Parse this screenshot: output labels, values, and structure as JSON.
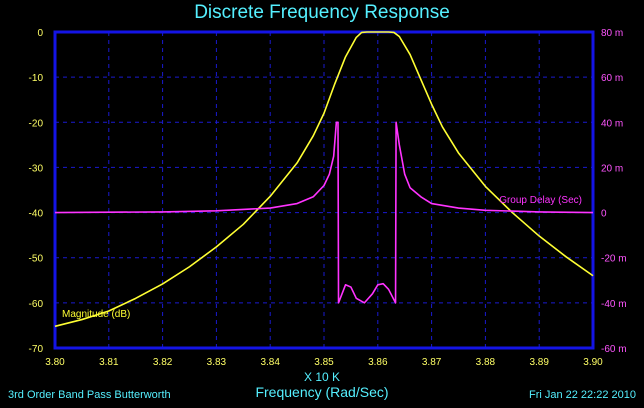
{
  "chart_data": {
    "type": "line",
    "title": "Discrete Frequency Response",
    "xlabel": "Frequency (Rad/Sec)",
    "x_multiplier": "X 10 K",
    "xlim": [
      3.8,
      3.9
    ],
    "x_ticks": [
      "3.80",
      "3.81",
      "3.82",
      "3.83",
      "3.84",
      "3.85",
      "3.86",
      "3.87",
      "3.88",
      "3.89",
      "3.90"
    ],
    "ylim_left": [
      -70,
      0
    ],
    "y_ticks_left": [
      "0",
      "-10",
      "-20",
      "-30",
      "-40",
      "-50",
      "-60",
      "-70"
    ],
    "ylim_right": [
      -60,
      80
    ],
    "y_ticks_right": [
      "80 m",
      "60 m",
      "40 m",
      "20 m",
      "0",
      "-20 m",
      "-40 m",
      "-60 m"
    ],
    "grid": true,
    "series": [
      {
        "name": "Magnitude (dB)",
        "axis": "left",
        "color": "#ffff33",
        "points": [
          [
            3.8,
            -65.2
          ],
          [
            3.805,
            -63.7
          ],
          [
            3.81,
            -61.8
          ],
          [
            3.815,
            -59.0
          ],
          [
            3.82,
            -55.8
          ],
          [
            3.825,
            -52.0
          ],
          [
            3.83,
            -47.6
          ],
          [
            3.835,
            -42.6
          ],
          [
            3.84,
            -36.4
          ],
          [
            3.845,
            -29.0
          ],
          [
            3.848,
            -23.0
          ],
          [
            3.85,
            -18.0
          ],
          [
            3.852,
            -11.5
          ],
          [
            3.854,
            -5.5
          ],
          [
            3.856,
            -1.2
          ],
          [
            3.857,
            -0.1
          ],
          [
            3.858,
            0.0
          ],
          [
            3.862,
            0.0
          ],
          [
            3.863,
            -0.1
          ],
          [
            3.864,
            -1.0
          ],
          [
            3.866,
            -5.0
          ],
          [
            3.868,
            -10.5
          ],
          [
            3.87,
            -16.0
          ],
          [
            3.872,
            -21.0
          ],
          [
            3.875,
            -26.8
          ],
          [
            3.88,
            -34.2
          ],
          [
            3.885,
            -40.0
          ],
          [
            3.89,
            -45.2
          ],
          [
            3.895,
            -49.8
          ],
          [
            3.9,
            -54.0
          ]
        ]
      },
      {
        "name": "Group Delay (Sec)",
        "axis": "right",
        "color": "#ff33ff",
        "points": [
          [
            3.8,
            0.0
          ],
          [
            3.82,
            0.3
          ],
          [
            3.83,
            0.8
          ],
          [
            3.84,
            2.0
          ],
          [
            3.845,
            4.0
          ],
          [
            3.848,
            7.0
          ],
          [
            3.85,
            12.0
          ],
          [
            3.851,
            17.0
          ],
          [
            3.8518,
            25.0
          ],
          [
            3.8523,
            40.0
          ],
          [
            3.8526,
            40.0
          ],
          [
            3.8527,
            -40.0
          ],
          [
            3.854,
            -32.0
          ],
          [
            3.855,
            -33.0
          ],
          [
            3.856,
            -38.0
          ],
          [
            3.8575,
            -40.0
          ],
          [
            3.859,
            -36.0
          ],
          [
            3.86,
            -32.0
          ],
          [
            3.861,
            -31.5
          ],
          [
            3.862,
            -34.0
          ],
          [
            3.8633,
            -40.0
          ],
          [
            3.8634,
            40.0
          ],
          [
            3.864,
            30.0
          ],
          [
            3.865,
            17.0
          ],
          [
            3.866,
            11.0
          ],
          [
            3.868,
            7.0
          ],
          [
            3.87,
            4.0
          ],
          [
            3.875,
            2.0
          ],
          [
            3.88,
            1.0
          ],
          [
            3.89,
            0.3
          ],
          [
            3.9,
            0.0
          ]
        ]
      }
    ]
  },
  "footer": {
    "left": "3rd Order Band Pass Butterworth",
    "right": "Fri Jan 22 22:22 2010"
  },
  "colors": {
    "background": "#000000",
    "frame": "#1414e6",
    "grid": "#1a1ad0",
    "title": "#55f0ff",
    "left_axis_text": "#ffff66",
    "right_axis_text": "#ff55ff",
    "magnitude": "#ffff33",
    "group_delay": "#ff33ff"
  }
}
